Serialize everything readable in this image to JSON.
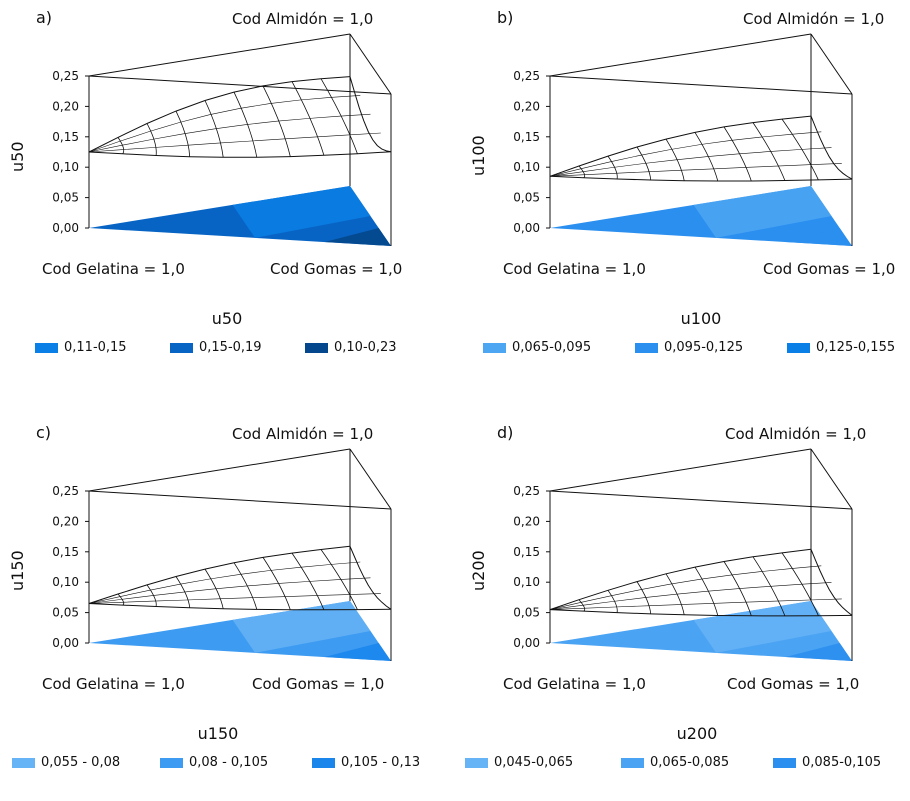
{
  "chart_data": [
    {
      "id": "a",
      "type": "surface",
      "panel_label": "a)",
      "ylabel": "u50",
      "corners": {
        "top": "Cod Almidón = 1,0",
        "left": "Cod Gelatina = 1,0",
        "right": "Cod Gomas = 1,0"
      },
      "yticks": [
        "0,25",
        "0,20",
        "0,15",
        "0,10",
        "0,05",
        "0,00"
      ],
      "ylim": [
        0,
        0.25
      ],
      "surface": {
        "gelatina": 0.125,
        "gomas": 0.155,
        "almidon": 0.18,
        "curve": 0.06
      },
      "legend": {
        "title": "u50",
        "items": [
          {
            "label": "0,11-0,15",
            "color": "#0a7fe6"
          },
          {
            "label": "0,15-0,19",
            "color": "#0864c4"
          },
          {
            "label": "0,10-0,23",
            "color": "#04478c"
          }
        ]
      },
      "floor_colors": [
        "#0864c4",
        "#0a7fe6",
        "#04478c"
      ]
    },
    {
      "id": "b",
      "type": "surface",
      "panel_label": "b)",
      "ylabel": "u100",
      "corners": {
        "top": "Cod Almidón = 1,0",
        "left": "Cod Gelatina = 1,0",
        "right": "Cod Gomas = 1,0"
      },
      "yticks": [
        "0,25",
        "0,20",
        "0,15",
        "0,10",
        "0,05",
        "0,00"
      ],
      "ylim": [
        0,
        0.25
      ],
      "surface": {
        "gelatina": 0.085,
        "gomas": 0.11,
        "almidon": 0.115,
        "curve": 0.035
      },
      "legend": {
        "title": "u100",
        "items": [
          {
            "label": "0,065-0,095",
            "color": "#4da6f2"
          },
          {
            "label": "0,095-0,125",
            "color": "#2b8ff0"
          },
          {
            "label": "0,125-0,155",
            "color": "#0a7fe6"
          }
        ]
      },
      "floor_colors": [
        "#2b8ff0",
        "#4da6f2",
        "#2b8ff0"
      ]
    },
    {
      "id": "c",
      "type": "surface",
      "panel_label": "c)",
      "ylabel": "u150",
      "corners": {
        "top": "Cod Almidón = 1,0",
        "left": "Cod Gelatina = 1,0",
        "right": "Cod Gomas = 1,0"
      },
      "yticks": [
        "0,25",
        "0,20",
        "0,15",
        "0,10",
        "0,05",
        "0,00"
      ],
      "ylim": [
        0,
        0.25
      ],
      "surface": {
        "gelatina": 0.065,
        "gomas": 0.085,
        "almidon": 0.09,
        "curve": 0.03
      },
      "legend": {
        "title": "u150",
        "items": [
          {
            "label": "0,055 - 0,08",
            "color": "#66b3f5"
          },
          {
            "label": "0,08 - 0,105",
            "color": "#3d9bf2"
          },
          {
            "label": "0,105 - 0,13",
            "color": "#1a86ec"
          }
        ]
      },
      "floor_colors": [
        "#3d9bf2",
        "#66b3f5",
        "#1a86ec"
      ]
    },
    {
      "id": "d",
      "type": "surface",
      "panel_label": "d)",
      "ylabel": "u200",
      "corners": {
        "top": "Cod Almidón = 1,0",
        "left": "Cod Gelatina = 1,0",
        "right": "Cod Gomas = 1,0"
      },
      "yticks": [
        "0,25",
        "0,20",
        "0,15",
        "0,10",
        "0,05",
        "0,00"
      ],
      "ylim": [
        0,
        0.25
      ],
      "surface": {
        "gelatina": 0.055,
        "gomas": 0.075,
        "almidon": 0.085,
        "curve": 0.03
      },
      "legend": {
        "title": "u200",
        "items": [
          {
            "label": "0,045-0,065",
            "color": "#66b3f5"
          },
          {
            "label": "0,065-0,085",
            "color": "#4aa3f3"
          },
          {
            "label": "0,085-0,105",
            "color": "#2b8ff0"
          }
        ]
      },
      "floor_colors": [
        "#4aa3f3",
        "#66b3f5",
        "#2b8ff0"
      ]
    }
  ]
}
